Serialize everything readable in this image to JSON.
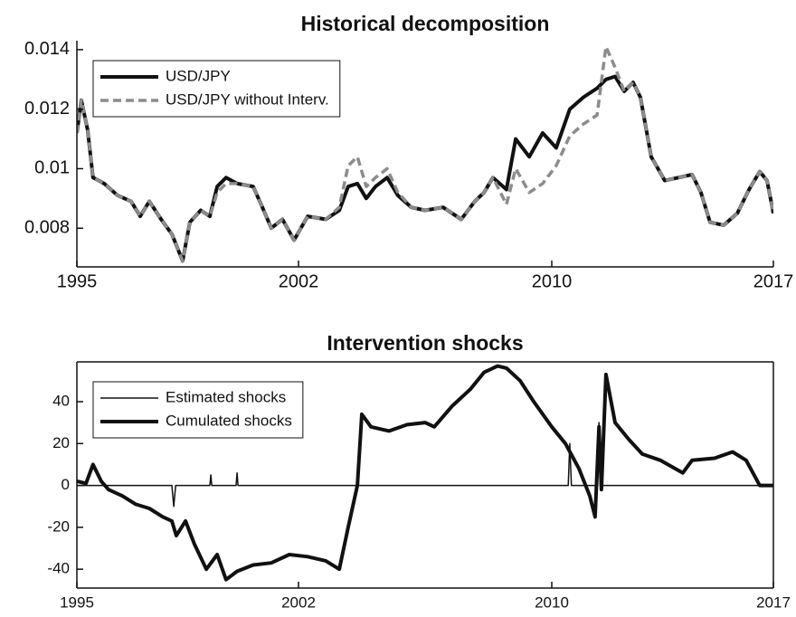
{
  "chart_data": [
    {
      "type": "line",
      "title": "Historical decomposition",
      "x": [
        1995.0,
        1995.14,
        1995.34,
        1995.51,
        1995.86,
        1996.29,
        1996.71,
        1997.0,
        1997.29,
        1997.66,
        1998.0,
        1998.34,
        1998.57,
        1998.91,
        1999.2,
        1999.43,
        1999.71,
        2000.06,
        2000.57,
        2000.86,
        2001.14,
        2001.49,
        2001.86,
        2002.29,
        2002.86,
        2003.29,
        2003.57,
        2003.86,
        2004.14,
        2004.43,
        2004.8,
        2005.14,
        2005.57,
        2006.0,
        2006.57,
        2007.14,
        2007.57,
        2007.86,
        2008.14,
        2008.57,
        2008.86,
        2009.29,
        2009.71,
        2010.14,
        2010.57,
        2011.0,
        2011.43,
        2011.71,
        2012.0,
        2012.29,
        2012.57,
        2012.8,
        2013.14,
        2013.57,
        2014.0,
        2014.43,
        2014.71,
        2015.0,
        2015.43,
        2015.86,
        2016.23,
        2016.57,
        2016.8,
        2017.0
      ],
      "series": [
        {
          "name": "USD/JPY",
          "color": "#111111",
          "linewidth": 4,
          "line_style": "solid",
          "values": [
            0.0112,
            0.0123,
            0.0113,
            0.0097,
            0.0095,
            0.0091,
            0.0089,
            0.0084,
            0.0089,
            0.0083,
            0.0078,
            0.0069,
            0.0082,
            0.0086,
            0.0084,
            0.0094,
            0.0097,
            0.0095,
            0.0094,
            0.0087,
            0.008,
            0.0083,
            0.0076,
            0.0084,
            0.0083,
            0.0086,
            0.0094,
            0.0095,
            0.009,
            0.0094,
            0.0097,
            0.0091,
            0.0087,
            0.0086,
            0.0087,
            0.0083,
            0.0089,
            0.0092,
            0.0097,
            0.0093,
            0.011,
            0.0104,
            0.0112,
            0.0107,
            0.012,
            0.0124,
            0.0127,
            0.013,
            0.0131,
            0.0126,
            0.0129,
            0.0124,
            0.0104,
            0.0096,
            0.0097,
            0.0098,
            0.0092,
            0.0082,
            0.0081,
            0.0085,
            0.0093,
            0.0099,
            0.0096,
            0.0085
          ]
        },
        {
          "name": "USD/JPY without Interv.",
          "color": "#8c8c8c",
          "linewidth": 3.5,
          "line_style": "dashed",
          "values": [
            0.0112,
            0.0123,
            0.0113,
            0.0097,
            0.0095,
            0.0091,
            0.0089,
            0.0084,
            0.0089,
            0.0083,
            0.0078,
            0.0069,
            0.0082,
            0.0086,
            0.0084,
            0.0092,
            0.0095,
            0.0095,
            0.0094,
            0.0087,
            0.008,
            0.0083,
            0.0076,
            0.0084,
            0.0083,
            0.0087,
            0.0101,
            0.0104,
            0.0094,
            0.0097,
            0.01,
            0.0092,
            0.0087,
            0.0086,
            0.0087,
            0.0083,
            0.0089,
            0.0092,
            0.0097,
            0.0088,
            0.01,
            0.0092,
            0.0095,
            0.0101,
            0.0111,
            0.0115,
            0.0118,
            0.0141,
            0.0134,
            0.0126,
            0.0129,
            0.0124,
            0.0104,
            0.0096,
            0.0097,
            0.0098,
            0.0092,
            0.0082,
            0.0081,
            0.0085,
            0.0093,
            0.0099,
            0.0096,
            0.0085
          ]
        }
      ],
      "xlim": [
        1995,
        2017
      ],
      "xticks": [
        1995,
        2002,
        2010,
        2017
      ],
      "ylim": [
        0.0067,
        0.0143
      ],
      "yticks": [
        0.008,
        0.01,
        0.012,
        0.014
      ],
      "legend": "upper left"
    },
    {
      "type": "line",
      "title": "Intervention shocks",
      "series": [
        {
          "name": "Estimated shocks",
          "color": "#111111",
          "linewidth": 1.5,
          "line_style": "solid",
          "x": [
            1995.0,
            1998.0,
            1998.06,
            1998.12,
            1999.2,
            1999.23,
            1999.26,
            2000.03,
            2000.06,
            2000.09,
            2010.52,
            2010.57,
            2010.62,
            2011.45,
            2011.49,
            2011.53,
            2017.0
          ],
          "values": [
            0,
            0,
            -10,
            0,
            0,
            5,
            0,
            0,
            6,
            0,
            0,
            20,
            0,
            0,
            30,
            0,
            0
          ]
        },
        {
          "name": "Cumulated shocks",
          "color": "#111111",
          "linewidth": 4,
          "line_style": "solid",
          "x": [
            1995.0,
            1995.29,
            1995.51,
            1995.77,
            1996.0,
            1996.43,
            1996.86,
            1997.29,
            1997.71,
            1998.0,
            1998.14,
            1998.43,
            1998.71,
            1999.09,
            1999.43,
            1999.71,
            2000.06,
            2000.57,
            2001.14,
            2001.71,
            2002.29,
            2002.86,
            2003.29,
            2003.57,
            2003.86,
            2004.0,
            2004.29,
            2004.86,
            2005.43,
            2006.0,
            2006.29,
            2006.86,
            2007.43,
            2007.86,
            2008.29,
            2008.57,
            2009.0,
            2009.43,
            2010.0,
            2010.43,
            2010.86,
            2011.2,
            2011.37,
            2011.49,
            2011.57,
            2011.71,
            2012.0,
            2012.43,
            2012.86,
            2013.43,
            2014.14,
            2014.43,
            2015.14,
            2015.71,
            2016.14,
            2016.57,
            2017.0
          ],
          "values": [
            2,
            1,
            10,
            2,
            -2,
            -5,
            -9,
            -11,
            -15,
            -17,
            -24,
            -17,
            -28,
            -40,
            -33,
            -45,
            -41,
            -38,
            -37,
            -33,
            -34,
            -36,
            -40,
            -20,
            0,
            34,
            28,
            26,
            29,
            30,
            28,
            38,
            46,
            54,
            57,
            56,
            50,
            40,
            28,
            20,
            8,
            -5,
            -15,
            28,
            -2,
            53,
            30,
            22,
            15,
            12,
            6,
            12,
            13,
            16,
            12,
            0,
            0
          ]
        }
      ],
      "xlim": [
        1995,
        2017
      ],
      "xticks": [
        1995,
        2002,
        2010,
        2017
      ],
      "ylim": [
        -49,
        59
      ],
      "yticks": [
        -40,
        -20,
        0,
        20,
        40
      ],
      "legend": "upper left"
    }
  ]
}
